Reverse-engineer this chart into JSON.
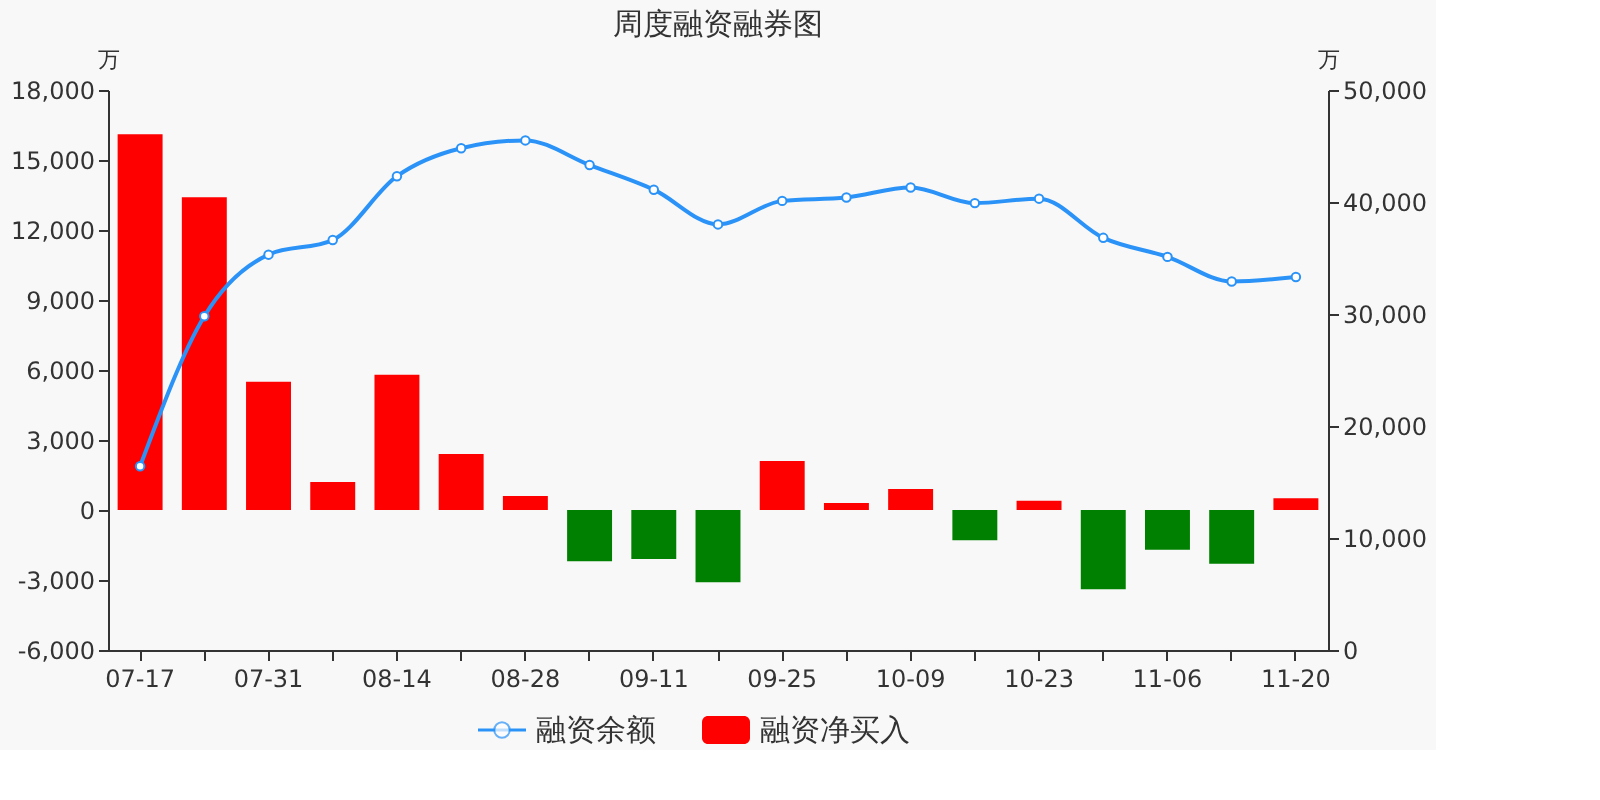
{
  "chart_data": {
    "type": "bar",
    "title": "周度融资融券图",
    "categories": [
      "07-17",
      null,
      "07-31",
      null,
      "08-14",
      null,
      "08-28",
      null,
      "09-11",
      null,
      "09-25",
      null,
      "10-09",
      null,
      "10-23",
      null,
      "11-06",
      null,
      "11-20"
    ],
    "ylabel": "万",
    "y2label": "万",
    "ylim": [
      -6000,
      18000
    ],
    "yticks": [
      {
        "value": -6000,
        "label": "-6,000"
      },
      {
        "value": -3000,
        "label": "-3,000"
      },
      0,
      {
        "value": 3000,
        "label": "3,000"
      },
      {
        "value": 6000,
        "label": "6,000"
      },
      {
        "value": 9000,
        "label": "9,000"
      },
      {
        "value": 12000,
        "label": "12,000"
      },
      {
        "value": 15000,
        "label": "15,000"
      },
      {
        "value": 18000,
        "label": "18,000"
      }
    ],
    "y2lim": [
      0,
      50000
    ],
    "y2ticks": [
      0,
      {
        "value": 10000,
        "label": "10,000"
      },
      {
        "value": 20000,
        "label": "20,000"
      },
      {
        "value": 30000,
        "label": "30,000"
      },
      {
        "value": 40000,
        "label": "40,000"
      },
      {
        "value": 50000,
        "label": "50,000"
      }
    ],
    "grid": false,
    "legend": "bottom",
    "marker": "circle",
    "line_style": "solid",
    "series": [
      {
        "name": "融资余额",
        "type": "line",
        "axis": "y2",
        "color": "#2b93f7",
        "values": [
          16400,
          29800,
          35300,
          36600,
          42300,
          44800,
          45500,
          43300,
          41100,
          38000,
          40100,
          40400,
          41300,
          39900,
          40300,
          36800,
          35100,
          32900,
          33300
        ]
      },
      {
        "name": "融资净买入",
        "color": "#ff0000",
        "values": [
          16100,
          13400,
          5500,
          1200,
          5800,
          2400,
          600,
          -2200,
          -2100,
          -3100,
          2100,
          300,
          900,
          -1300,
          400,
          -3400,
          -1700,
          -2300,
          500
        ],
        "colors": [
          "#ff0000",
          "#ff0000",
          "#ff0000",
          "#ff0000",
          "#ff0000",
          "#ff0000",
          "#ff0000",
          "#008000",
          "#008000",
          "#008000",
          "#ff0000",
          "#ff0000",
          "#ff0000",
          "#008000",
          "#ff0000",
          "#008000",
          "#008000",
          "#008000",
          "#ff0000"
        ]
      }
    ]
  }
}
